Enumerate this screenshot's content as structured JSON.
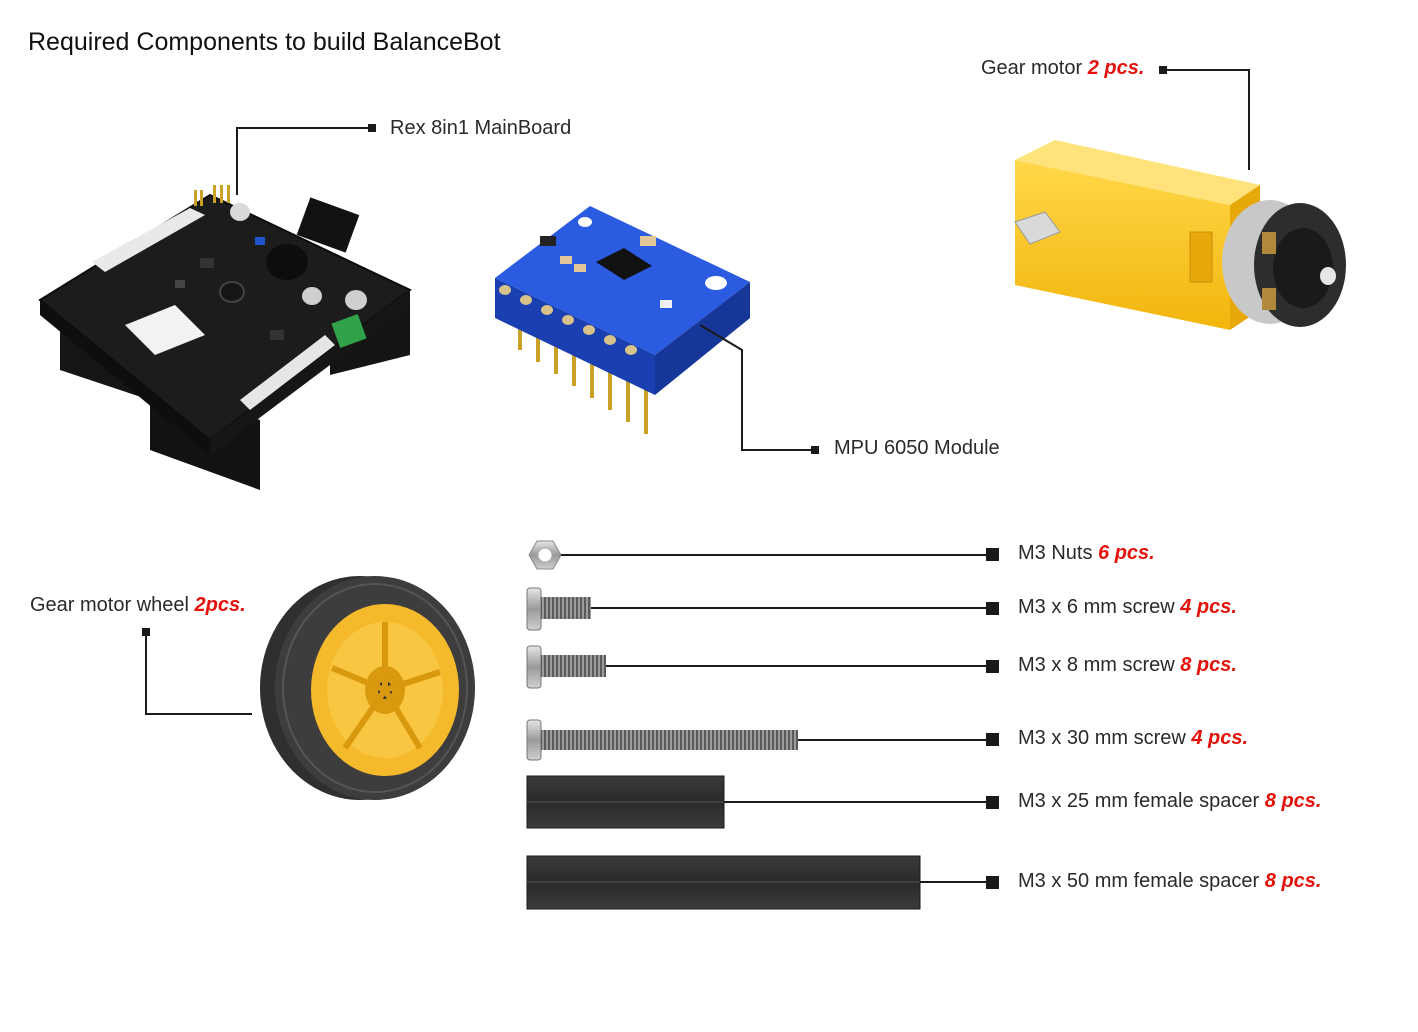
{
  "title": "Required Components to build BalanceBot",
  "components": {
    "mainboard": {
      "name": "Rex 8in1 MainBoard"
    },
    "mpu": {
      "name": "MPU 6050 Module"
    },
    "gear_motor": {
      "name": "Gear motor",
      "qty": "2 pcs."
    },
    "wheel": {
      "name": "Gear motor wheel",
      "qty": "2pcs."
    },
    "nuts": {
      "name": "M3 Nuts",
      "qty": "6 pcs."
    },
    "screw6": {
      "name": "M3 x 6 mm screw",
      "qty": "4 pcs."
    },
    "screw8": {
      "name": "M3 x 8 mm screw",
      "qty": "8 pcs."
    },
    "screw30": {
      "name": "M3 x 30 mm screw",
      "qty": "4 pcs."
    },
    "spacer25": {
      "name": "M3 x 25 mm female spacer",
      "qty": "8 pcs."
    },
    "spacer50": {
      "name": "M3 x 50 mm female spacer",
      "qty": "8 pcs."
    }
  },
  "colors": {
    "quantity": "#e3120b",
    "leader": "#1a1a1a",
    "pcb": "#1c1c1c",
    "mpu_board": "#1f4fd6",
    "motor_yellow": "#f7c21c",
    "wheel_hub": "#f5b92c",
    "tire": "#3a3a3a",
    "spacer": "#2e2e2e"
  }
}
